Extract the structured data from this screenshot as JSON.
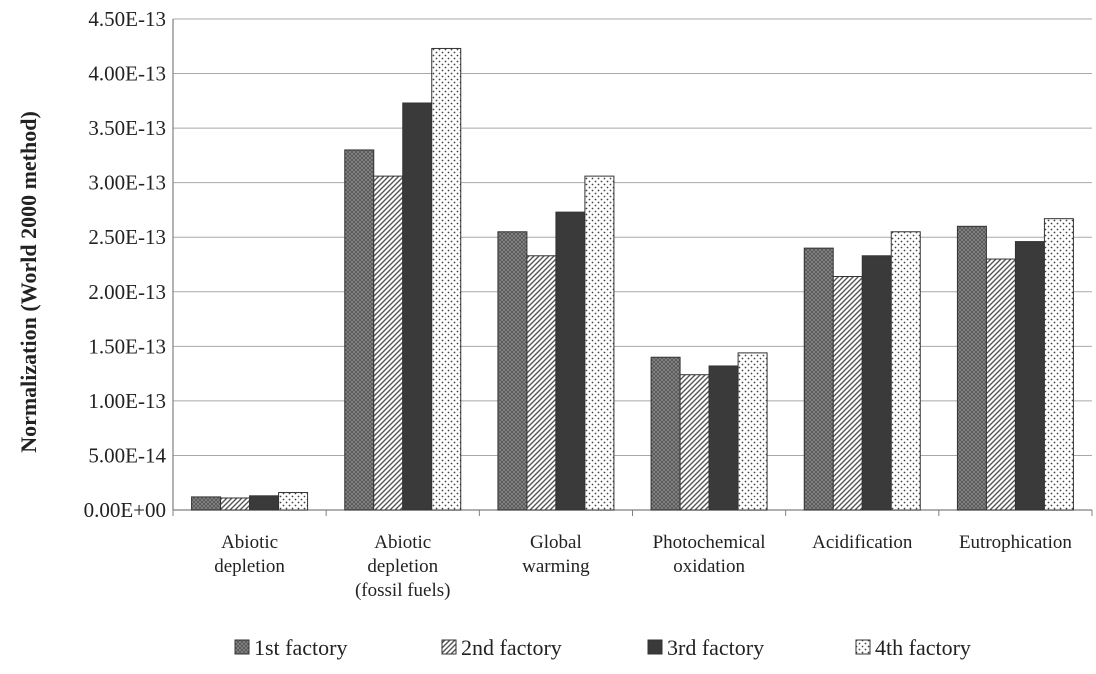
{
  "chart_data": {
    "type": "bar",
    "title": "",
    "xlabel": "",
    "ylabel": "Normalization  (World  2000 method)",
    "ylim": [
      0,
      4.5e-13
    ],
    "yticks": [
      0,
      5e-14,
      1e-13,
      1.5e-13,
      2e-13,
      2.5e-13,
      3e-13,
      3.5e-13,
      4e-13,
      4.5e-13
    ],
    "ytick_labels": [
      "0.00E+00",
      "5.00E-14",
      "1.00E-13",
      "1.50E-13",
      "2.00E-13",
      "2.50E-13",
      "3.00E-13",
      "3.50E-13",
      "4.00E-13",
      "4.50E-13"
    ],
    "grid": true,
    "legend_position": "bottom",
    "categories": [
      [
        "Abiotic",
        "depletion"
      ],
      [
        "Abiotic",
        "depletion",
        "(fossil fuels)"
      ],
      [
        "Global",
        "warming"
      ],
      [
        "Photochemical",
        "oxidation"
      ],
      [
        "Acidification"
      ],
      [
        "Eutrophication"
      ]
    ],
    "series": [
      {
        "name": "1st factory",
        "pattern": "crosshatch",
        "color": "#777777",
        "values": [
          1.2e-14,
          3.3e-13,
          2.55e-13,
          1.4e-13,
          2.4e-13,
          2.6e-13
        ]
      },
      {
        "name": "2nd factory",
        "pattern": "diagonal",
        "color": "#888888",
        "values": [
          1.1e-14,
          3.06e-13,
          2.33e-13,
          1.24e-13,
          2.14e-13,
          2.3e-13
        ]
      },
      {
        "name": "3rd factory",
        "pattern": "solid-dark",
        "color": "#3a3a3a",
        "values": [
          1.3e-14,
          3.73e-13,
          2.73e-13,
          1.32e-13,
          2.33e-13,
          2.46e-13
        ]
      },
      {
        "name": "4th factory",
        "pattern": "dots",
        "color": "#ffffff",
        "values": [
          1.6e-14,
          4.23e-13,
          3.06e-13,
          1.44e-13,
          2.55e-13,
          2.67e-13
        ]
      }
    ]
  }
}
